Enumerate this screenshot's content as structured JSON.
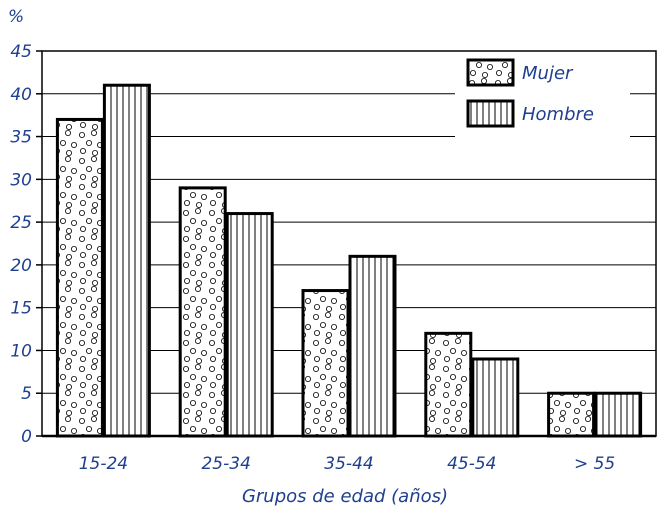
{
  "chart_data": {
    "type": "bar",
    "title": "",
    "unit_label": "%",
    "xlabel": "Grupos de edad (años)",
    "ylabel": "",
    "ylim": [
      0,
      45
    ],
    "yticks": [
      0,
      5,
      10,
      15,
      20,
      25,
      30,
      35,
      40,
      45
    ],
    "categories": [
      "15-24",
      "25-34",
      "35-44",
      "45-54",
      "> 55"
    ],
    "series": [
      {
        "name": "Mujer",
        "values": [
          37,
          29,
          17,
          12,
          5
        ],
        "pattern": "dots"
      },
      {
        "name": "Hombre",
        "values": [
          41,
          26,
          21,
          9,
          5
        ],
        "pattern": "vertical-stripes"
      }
    ],
    "grid": true,
    "legend_position": "top-right",
    "colors": {
      "text": "#1f3f8f",
      "ink": "#000000",
      "background": "#ffffff"
    }
  }
}
